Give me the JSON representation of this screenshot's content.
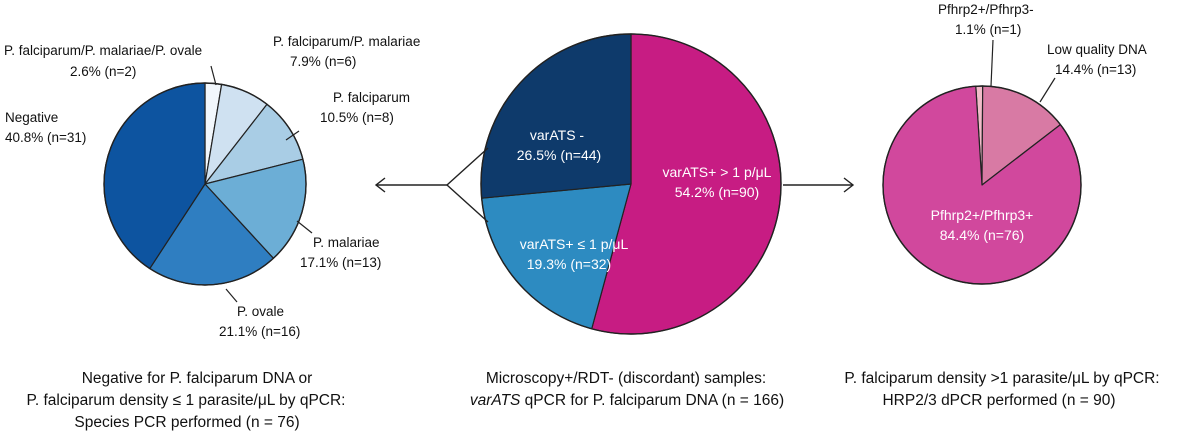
{
  "chart_data": [
    {
      "type": "pie",
      "title": "Microscopy+/RDT- (discordant) samples: varATS qPCR for P. falciparum DNA (n = 166)",
      "total": 166,
      "slices": [
        {
          "name": "varATS+ > 1 p/μL",
          "percent": 54.2,
          "n": 90,
          "color": "#c71c83"
        },
        {
          "name": "varATS+ ≤ 1 p/μL",
          "percent": 19.3,
          "n": 32,
          "color": "#2d8bc1"
        },
        {
          "name": "varATS -",
          "percent": 26.5,
          "n": 44,
          "color": "#0e3a6b"
        }
      ]
    },
    {
      "type": "pie",
      "title": "Negative for P. falciparum DNA or P. falciparum density ≤ 1 parasite/μL by qPCR: Species PCR performed (n = 76)",
      "total": 76,
      "slices": [
        {
          "name": "P. falciparum/P. malariae/P. ovale",
          "percent": 2.6,
          "n": 2,
          "color": "#f2f7fc"
        },
        {
          "name": "P. falciparum/P. malariae",
          "percent": 7.9,
          "n": 6,
          "color": "#cfe1f1"
        },
        {
          "name": "P. falciparum",
          "percent": 10.5,
          "n": 8,
          "color": "#a9cde5"
        },
        {
          "name": "P. malariae",
          "percent": 17.1,
          "n": 13,
          "color": "#6caed6"
        },
        {
          "name": "P. ovale",
          "percent": 21.1,
          "n": 16,
          "color": "#2f7ec1"
        },
        {
          "name": "Negative",
          "percent": 40.8,
          "n": 31,
          "color": "#0d54a0"
        }
      ]
    },
    {
      "type": "pie",
      "title": "P. falciparum density >1 parasite/μL by qPCR: HRP2/3 dPCR performed (n = 90)",
      "total": 90,
      "slices": [
        {
          "name": "Pfhrp2+/Pfhrp3-",
          "percent": 1.1,
          "n": 1,
          "color": "#f1bcc9"
        },
        {
          "name": "Low quality DNA",
          "percent": 14.4,
          "n": 13,
          "color": "#d87aa4"
        },
        {
          "name": "Pfhrp2+/Pfhrp3+",
          "percent": 84.4,
          "n": 76,
          "color": "#d1489d"
        }
      ]
    }
  ],
  "labels": {
    "center": {
      "varats_neg": {
        "name": "varATS -",
        "value": "26.5% (n=44)"
      },
      "varats_low": {
        "name": "varATS+ ≤  1 p/μL",
        "value": "19.3% (n=32)"
      },
      "varats_high": {
        "name": "varATS+ > 1 p/μL",
        "value": "54.2% (n=90)"
      }
    },
    "left": {
      "pmo": {
        "name": "P. falciparum/P. malariae/P. ovale",
        "value": "2.6% (n=2)"
      },
      "pm": {
        "name": "P. falciparum/P. malariae",
        "value": "7.9% (n=6)"
      },
      "pf": {
        "name": "P. falciparum",
        "value": "10.5% (n=8)"
      },
      "pmal": {
        "name": "P. malariae",
        "value": "17.1% (n=13)"
      },
      "pov": {
        "name": "P. ovale",
        "value": "21.1% (n=16)"
      },
      "neg": {
        "name": "Negative",
        "value": "40.8% (n=31)"
      }
    },
    "right": {
      "p23m": {
        "name": "Pfhrp2+/Pfhrp3-",
        "value": "1.1% (n=1)"
      },
      "lq": {
        "name": "Low quality DNA",
        "value": "14.4% (n=13)"
      },
      "p23p": {
        "name": "Pfhrp2+/Pfhrp3+",
        "value": "84.4% (n=76)"
      }
    }
  },
  "captions": {
    "left": [
      "Negative for P. falciparum DNA or",
      "P. falciparum density ≤ 1 parasite/μL by qPCR:",
      "Species PCR performed (n = 76)"
    ],
    "center": [
      "Microscopy+/RDT-  (discordant) samples:",
      "varATS",
      " qPCR for P. falciparum DNA (n = 166)"
    ],
    "right": [
      "P. falciparum density >1 parasite/μL by qPCR:",
      "HRP2/3 dPCR performed (n = 90)"
    ]
  },
  "colors": {
    "text": "#111111",
    "stroke": "#222222"
  }
}
